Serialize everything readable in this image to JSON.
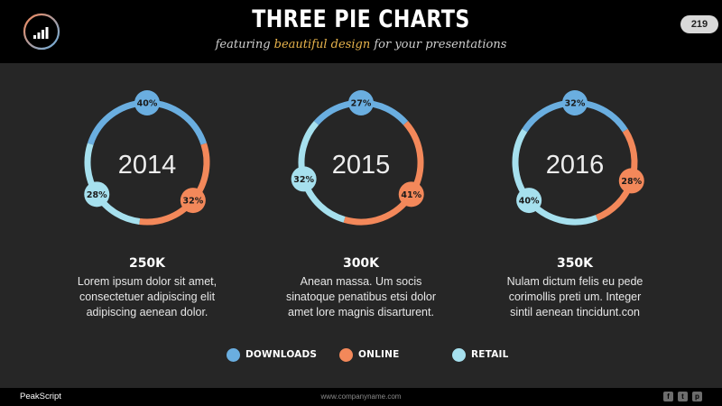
{
  "header": {
    "title": "THREE PIE CHARTS",
    "subtitle_before": "featuring ",
    "subtitle_highlight": "beautiful design",
    "subtitle_after": " for your presentations",
    "page_number": "219",
    "logo_icon": "signal-bars-icon"
  },
  "colors": {
    "downloads": "#6aaee0",
    "online": "#f3885a",
    "retail": "#a6e0ee",
    "highlight": "#e8b44c"
  },
  "chart_data": [
    {
      "type": "pie",
      "title": "2014",
      "slices": [
        {
          "name": "DOWNLOADS",
          "value": 40,
          "label": "40%"
        },
        {
          "name": "ONLINE",
          "value": 32,
          "label": "32%"
        },
        {
          "name": "RETAIL",
          "value": 28,
          "label": "28%"
        }
      ],
      "total": "250K",
      "description": [
        "Lorem ipsum dolor sit amet,",
        "consectetuer adipiscing elit",
        "adipiscing aenean dolor."
      ]
    },
    {
      "type": "pie",
      "title": "2015",
      "slices": [
        {
          "name": "DOWNLOADS",
          "value": 27,
          "label": "27%"
        },
        {
          "name": "ONLINE",
          "value": 41,
          "label": "41%"
        },
        {
          "name": "RETAIL",
          "value": 32,
          "label": "32%"
        }
      ],
      "total": "300K",
      "description": [
        "Anean massa. Um socis",
        "sinatoque penatibus etsi dolor",
        "amet lore magnis disarturent."
      ]
    },
    {
      "type": "pie",
      "title": "2016",
      "slices": [
        {
          "name": "DOWNLOADS",
          "value": 32,
          "label": "32%"
        },
        {
          "name": "ONLINE",
          "value": 28,
          "label": "28%"
        },
        {
          "name": "RETAIL",
          "value": 40,
          "label": "40%"
        }
      ],
      "total": "350K",
      "description": [
        "Nulam dictum felis eu pede",
        "corimollis preti um. Integer",
        "sintil aenean tincidunt.con"
      ]
    }
  ],
  "legend": [
    {
      "label": "DOWNLOADS",
      "color": "#6aaee0"
    },
    {
      "label": "ONLINE",
      "color": "#f3885a"
    },
    {
      "label": "RETAIL",
      "color": "#a6e0ee"
    }
  ],
  "footer": {
    "brand": "PeakScript",
    "url": "www.companyname.com",
    "social_icons": [
      "facebook-icon",
      "twitter-icon",
      "pinterest-icon"
    ]
  }
}
